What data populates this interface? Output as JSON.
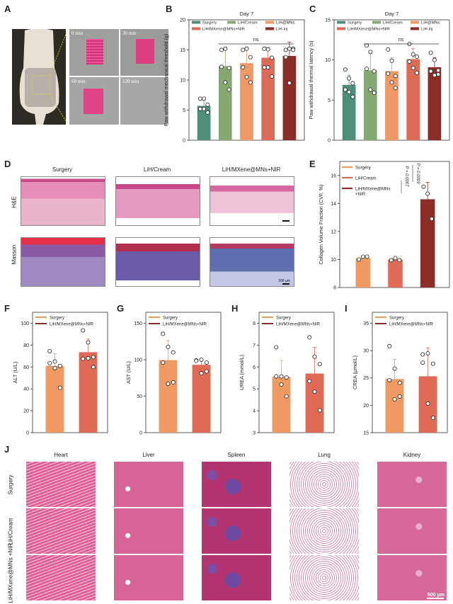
{
  "panels": {
    "A": {
      "letter": "A",
      "time_labels": [
        "0 min",
        "30 min",
        "60 min",
        "120 min"
      ]
    },
    "B": {
      "letter": "B"
    },
    "C": {
      "letter": "C"
    },
    "D": {
      "letter": "D",
      "columns": [
        "Surgery",
        "LiH/Cream",
        "LiH/MXene@MNs+NIR"
      ],
      "rows": [
        "H&E",
        "Masson"
      ],
      "scalebar": "200 μm"
    },
    "E": {
      "letter": "E"
    },
    "F": {
      "letter": "F"
    },
    "G": {
      "letter": "G"
    },
    "H": {
      "letter": "H"
    },
    "I": {
      "letter": "I"
    },
    "J": {
      "letter": "J",
      "columns": [
        "Heart",
        "Liver",
        "Spleen",
        "Lung",
        "Kidney"
      ],
      "rows": [
        "Surgery",
        "LiH/Cream",
        "LiH/MXene@MNs +NIR"
      ],
      "scalebar": "500 μm"
    }
  },
  "colors": {
    "surgery_teal": "#4e8f7c",
    "lih_cream_green": "#86a872",
    "lih_mns_orange": "#ee9966",
    "lih_mxene_red": "#dd6a55",
    "lih_inj_darkred": "#8c2e28",
    "surgery_orange": "#ef9a62",
    "mxene_red": "#df6a55",
    "e_darkred": "#8c2e28"
  },
  "chart_data": [
    {
      "panel": "B",
      "type": "bar",
      "title": "Day 7",
      "ylabel": "Paw withdrawal mechanical threshold (g)",
      "xlabel": "",
      "ylim": [
        0,
        20
      ],
      "yticks": [
        0,
        5,
        10,
        15,
        20
      ],
      "categories": [
        "Surgery",
        "LiH/Cream",
        "LiH@MNs",
        "LiH/MXene@MNs+NIR",
        "LiH-inj"
      ],
      "values": [
        5.7,
        12.3,
        12.8,
        13.7,
        14.0
      ],
      "errors": [
        1.0,
        2.7,
        2.2,
        1.7,
        2.3
      ],
      "points": [
        [
          6.9,
          6.9,
          5.9,
          5.2,
          5.2,
          4.6
        ],
        [
          15.0,
          15.2,
          12.0,
          12.2,
          9.6,
          8.4
        ],
        [
          15.0,
          15.2,
          13.8,
          12.1,
          10.5,
          9.6
        ],
        [
          15.2,
          15.1,
          13.7,
          12.1,
          12.1,
          10.6
        ],
        [
          15.0,
          15.2,
          15.2,
          13.8,
          9.5,
          15.0
        ]
      ],
      "legend": [
        "Surgery",
        "LiH/Cream",
        "LiH@MNs",
        "LiH/MXene@MNs+NIR",
        "LiH-inj"
      ],
      "annotation": "ns"
    },
    {
      "panel": "C",
      "type": "bar",
      "title": "Day 7",
      "ylabel": "Paw withdrawal thermal latency (s)",
      "xlabel": "",
      "ylim": [
        0,
        15
      ],
      "yticks": [
        0,
        5,
        10,
        15
      ],
      "categories": [
        "Surgery",
        "LiH/Cream",
        "LiH@MNs",
        "LiH/MXene@MNs+NIR",
        "LiH-inj"
      ],
      "values": [
        6.9,
        8.7,
        8.6,
        10.1,
        9.1
      ],
      "errors": [
        1.2,
        2.4,
        1.7,
        1.3,
        1.2
      ],
      "points": [
        [
          8.8,
          7.7,
          7.1,
          6.3,
          6.0,
          5.4
        ],
        [
          11.8,
          11.0,
          8.6,
          8.9,
          6.3,
          5.9
        ],
        [
          11.3,
          9.9,
          8.0,
          8.3,
          7.2,
          6.5
        ],
        [
          12.0,
          10.7,
          10.4,
          9.8,
          9.0,
          8.4
        ],
        [
          10.9,
          10.0,
          8.7,
          8.6,
          8.1,
          8.2
        ]
      ],
      "legend": [
        "Surgery",
        "LiH/Cream",
        "LiH@MNs",
        "LiH/MXene@MNs+NIR",
        "LiH-inj"
      ],
      "annotation": "ns"
    },
    {
      "panel": "E",
      "type": "bar",
      "title": "",
      "ylabel": "Collagen Volume Fraction (CVF, %)",
      "xlabel": "",
      "ylim": [
        8,
        17
      ],
      "yticks": [
        8,
        10,
        12,
        14,
        16
      ],
      "categories": [
        "Surgery",
        "LiH/Cream",
        "LiH/MXene@MNs +NIR"
      ],
      "values": [
        10.1,
        10.0,
        14.3
      ],
      "errors": [
        0.1,
        0.08,
        1.2
      ],
      "points": [
        [
          10.0,
          10.2,
          10.2
        ],
        [
          9.95,
          10.1,
          9.95
        ],
        [
          15.2,
          14.7,
          12.9
        ]
      ],
      "legend": [
        "Surgery",
        "LiH/Cream",
        "LiH/MXene@MNs +NIR"
      ],
      "annotations": [
        "P = 0.0007",
        "P = 0.0009"
      ]
    },
    {
      "panel": "F",
      "type": "bar",
      "title": "",
      "ylabel": "ALT (U/L)",
      "xlabel": "",
      "ylim": [
        0,
        110
      ],
      "yticks": [
        0,
        20,
        40,
        60,
        80,
        100
      ],
      "categories": [
        "Surgery",
        "LiH/MXene@MNs+NIR"
      ],
      "values": [
        61,
        73.5
      ],
      "errors": [
        11,
        12
      ],
      "points": [
        [
          74.5,
          65,
          61,
          63.5,
          59,
          41
        ],
        [
          93.5,
          82.5,
          69,
          67.5,
          68,
          60
        ]
      ],
      "legend": [
        "Surgery",
        "LiH/MXene@MNs+NIR"
      ]
    },
    {
      "panel": "G",
      "type": "bar",
      "title": "",
      "ylabel": "AST (U/L)",
      "xlabel": "",
      "ylim": [
        0,
        165
      ],
      "yticks": [
        0,
        50,
        100,
        150
      ],
      "categories": [
        "Surgery",
        "LiH/MXene@MNs+NIR"
      ],
      "values": [
        99.5,
        93
      ],
      "errors": [
        27,
        7
      ],
      "points": [
        [
          135.5,
          117.5,
          110,
          96,
          67,
          69
        ],
        [
          99,
          100,
          96,
          98.5,
          81.5,
          84
        ]
      ],
      "legend": [
        "Surgery",
        "LiH/MXene@MNs+NIR"
      ]
    },
    {
      "panel": "H",
      "type": "bar",
      "title": "",
      "ylabel": "UREA (mmol/L)",
      "xlabel": "",
      "ylim": [
        3,
        8.5
      ],
      "yticks": [
        3,
        4,
        5,
        6,
        7,
        8
      ],
      "categories": [
        "Surgery",
        "LiH/MXene@MNs+NIR"
      ],
      "values": [
        5.55,
        5.7
      ],
      "errors": [
        0.75,
        1.2
      ],
      "points": [
        [
          6.9,
          5.57,
          5.52,
          5.57,
          5.2,
          4.66
        ],
        [
          7.35,
          6.47,
          6.13,
          5.35,
          4.87,
          4.02
        ]
      ],
      "legend": [
        "Surgery",
        "LiH/MXene@MNs+NIR"
      ]
    },
    {
      "panel": "I",
      "type": "bar",
      "title": "",
      "ylabel": "CREA (μmol/L)",
      "xlabel": "",
      "ylim": [
        15,
        37
      ],
      "yticks": [
        15,
        20,
        25,
        30,
        35
      ],
      "categories": [
        "Surgery",
        "LiH/MXene@MNs+NIR"
      ],
      "values": [
        24.8,
        25.3
      ],
      "errors": [
        3.6,
        5.2
      ],
      "points": [
        [
          30.8,
          26.7,
          24.1,
          24.6,
          21.1,
          21.6
        ],
        [
          29.3,
          29.5,
          27.6,
          27.8,
          20.3,
          17.7
        ]
      ],
      "legend": [
        "Surgery",
        "LiH/MXene@MNs+NIR"
      ]
    }
  ]
}
